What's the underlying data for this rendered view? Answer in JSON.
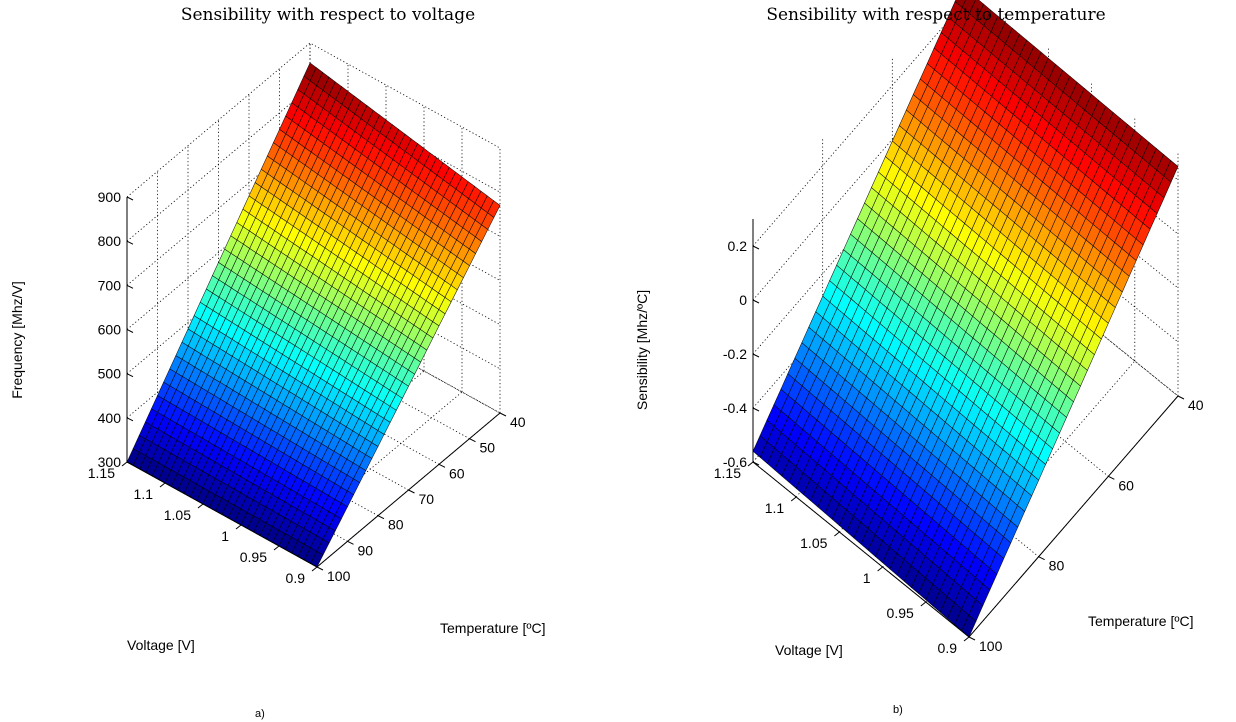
{
  "chart_data": [
    {
      "type": "surface",
      "panel_label": "a)",
      "title": "Sensibility with respect to voltage",
      "xlabel": "Voltage [V]",
      "ylabel": "Temperature [ºC]",
      "zlabel": "Frequency [Mhz/V]",
      "xlim": [
        0.9,
        1.15
      ],
      "ylim": [
        40,
        100
      ],
      "zlim": [
        300,
        900
      ],
      "x_ticks": [
        0.9,
        0.95,
        1,
        1.05,
        1.1,
        1.15
      ],
      "x_tick_labels": [
        "0.9",
        "0.95",
        "1",
        "1.05",
        "1.1",
        "1.15"
      ],
      "y_ticks": [
        40,
        50,
        60,
        70,
        80,
        90,
        100
      ],
      "y_tick_labels": [
        "40",
        "50",
        "60",
        "70",
        "80",
        "90",
        "100"
      ],
      "z_ticks": [
        300,
        400,
        500,
        600,
        700,
        800,
        900
      ],
      "z_tick_labels": [
        "300",
        "400",
        "500",
        "600",
        "700",
        "800",
        "900"
      ],
      "grid": true,
      "colormap": "jet",
      "corner_values": {
        "v0.9_t100": 300,
        "v1.15_t100": 300,
        "v1.15_t40": 855,
        "v0.9_t40": 770
      }
    },
    {
      "type": "surface",
      "panel_label": "b)",
      "title": "Sensibility with respect to temperature",
      "xlabel": "Voltage [V]",
      "ylabel": "Temperature [ºC]",
      "zlabel": "Sensibility [Mhz/ºC]",
      "xlim": [
        0.9,
        1.15
      ],
      "ylim": [
        40,
        100
      ],
      "zlim": [
        -0.6,
        0.3
      ],
      "x_ticks": [
        0.9,
        0.95,
        1,
        1.05,
        1.1,
        1.15
      ],
      "x_tick_labels": [
        "0.9",
        "0.95",
        "1",
        "1.05",
        "1.1",
        "1.15"
      ],
      "y_ticks": [
        40,
        60,
        80,
        100
      ],
      "y_tick_labels": [
        "40",
        "60",
        "80",
        "100"
      ],
      "z_ticks": [
        -0.6,
        -0.4,
        -0.2,
        0,
        0.2
      ],
      "z_tick_labels": [
        "-0.6",
        "-0.4",
        "-0.2",
        "0",
        "0.2"
      ],
      "grid": true,
      "colormap": "jet",
      "corner_values": {
        "v0.9_t100": -0.6,
        "v1.15_t100": -0.56,
        "v1.15_t40": 0.27,
        "v0.9_t40": 0.25
      }
    }
  ]
}
